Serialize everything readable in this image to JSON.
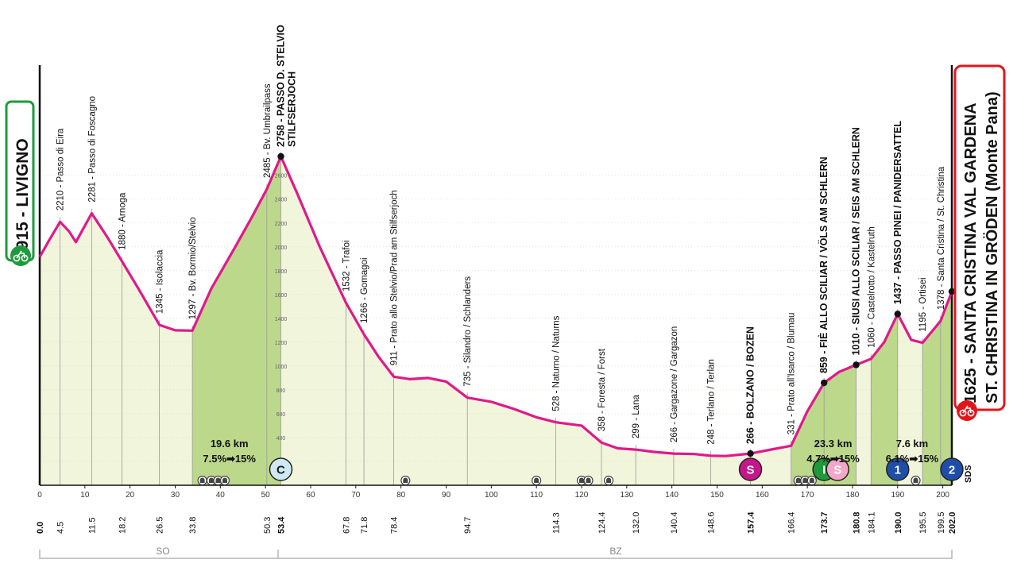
{
  "start": {
    "label": "1915 - LIVIGNO",
    "border_color": "#1e9a3c"
  },
  "finish": {
    "label_line1": "1625 - SANTA CRISTINA VAL GARDENA",
    "label_line2": "ST. CHRISTINA IN GRÖDEN (Monte Pana)",
    "border_color": "#e0161b"
  },
  "region_labels": [
    "SO",
    "BZ"
  ],
  "colors": {
    "profile_line": "#e0198b",
    "climb_fill": "#bcd88a",
    "base_fill": "#f1f5dc",
    "grid": "#b8b8b8"
  },
  "chart_data": {
    "type": "area",
    "x_unit": "km",
    "y_unit": "m",
    "xlim": [
      0,
      202
    ],
    "ylim": [
      0,
      2900
    ],
    "y_ticks": [
      200,
      400,
      600,
      800,
      1000,
      1200,
      1400,
      1600,
      1800,
      2000,
      2200,
      2400,
      2600
    ],
    "x_ticks": [
      10,
      20,
      30,
      40,
      50,
      60,
      70,
      80,
      90,
      100,
      110,
      120,
      130,
      140,
      150,
      160,
      170,
      180,
      190,
      200
    ],
    "profile": [
      [
        0,
        1915
      ],
      [
        2,
        2050
      ],
      [
        4.5,
        2210
      ],
      [
        6.5,
        2130
      ],
      [
        8,
        2040
      ],
      [
        11.5,
        2281
      ],
      [
        15,
        2080
      ],
      [
        18.2,
        1880
      ],
      [
        22,
        1640
      ],
      [
        26.5,
        1345
      ],
      [
        30,
        1300
      ],
      [
        33.8,
        1297
      ],
      [
        38,
        1650
      ],
      [
        43,
        1980
      ],
      [
        47,
        2250
      ],
      [
        50.3,
        2485
      ],
      [
        53.4,
        2758
      ],
      [
        57,
        2450
      ],
      [
        62,
        2000
      ],
      [
        67.8,
        1532
      ],
      [
        71.8,
        1266
      ],
      [
        75,
        1080
      ],
      [
        78.4,
        911
      ],
      [
        82,
        890
      ],
      [
        86,
        900
      ],
      [
        90,
        870
      ],
      [
        94.7,
        735
      ],
      [
        100,
        700
      ],
      [
        105,
        640
      ],
      [
        110,
        570
      ],
      [
        114.3,
        528
      ],
      [
        120,
        500
      ],
      [
        124.4,
        358
      ],
      [
        128,
        310
      ],
      [
        132,
        299
      ],
      [
        136,
        280
      ],
      [
        140.4,
        266
      ],
      [
        145,
        262
      ],
      [
        148.6,
        248
      ],
      [
        152,
        245
      ],
      [
        157.4,
        266
      ],
      [
        162,
        300
      ],
      [
        166.4,
        331
      ],
      [
        170,
        620
      ],
      [
        173.7,
        859
      ],
      [
        177,
        950
      ],
      [
        180.8,
        1010
      ],
      [
        184.1,
        1060
      ],
      [
        187,
        1200
      ],
      [
        190,
        1437
      ],
      [
        193,
        1220
      ],
      [
        195.5,
        1195
      ],
      [
        199.5,
        1378
      ],
      [
        202,
        1625
      ]
    ],
    "climb_segments": [
      [
        33.8,
        53.4
      ],
      [
        166.4,
        180.8
      ],
      [
        184.1,
        190
      ],
      [
        195.5,
        202
      ]
    ],
    "points": [
      {
        "km": 4.5,
        "alt": 2210,
        "label": "2210 - Passo di Eira",
        "bold": false
      },
      {
        "km": 11.5,
        "alt": 2281,
        "label": "2281 - Passo di Foscagno",
        "bold": false
      },
      {
        "km": 18.2,
        "alt": 1880,
        "label": "1880 - Arnoga",
        "bold": false
      },
      {
        "km": 26.5,
        "alt": 1345,
        "label": "1345 - Isolaccia",
        "bold": false
      },
      {
        "km": 33.8,
        "alt": 1297,
        "label": "1297 - Bv. Bormio/Stelvio",
        "bold": false
      },
      {
        "km": 50.3,
        "alt": 2485,
        "label": "2485 - Bv. Umbrailpass",
        "bold": false
      },
      {
        "km": 53.4,
        "alt": 2758,
        "label": "2758 - PASSO D. STELVIO",
        "label2": "STILFSERJOCH",
        "bold": true,
        "dot": true
      },
      {
        "km": 67.8,
        "alt": 1532,
        "label": "1532 - Trafoi",
        "bold": false
      },
      {
        "km": 71.8,
        "alt": 1266,
        "label": "1266 - Gomagoi",
        "bold": false
      },
      {
        "km": 78.4,
        "alt": 911,
        "label": "911 - Prato allo Stelvio/Prad am Stilfserjoch",
        "bold": false
      },
      {
        "km": 94.7,
        "alt": 735,
        "label": "735 - Silandro / Schlanders",
        "bold": false
      },
      {
        "km": 114.3,
        "alt": 528,
        "label": "528 - Naturno / Naturns",
        "bold": false
      },
      {
        "km": 124.4,
        "alt": 358,
        "label": "358 - Foresta / Forst",
        "bold": false
      },
      {
        "km": 132.0,
        "alt": 299,
        "label": "299 - Lana",
        "bold": false
      },
      {
        "km": 140.4,
        "alt": 266,
        "label": "266 - Gargazone / Gargazon",
        "bold": false
      },
      {
        "km": 148.6,
        "alt": 248,
        "label": "248 - Terlano / Terlan",
        "bold": false
      },
      {
        "km": 157.4,
        "alt": 266,
        "label": "266 - BOLZANO / BOZEN",
        "bold": true,
        "dot": true
      },
      {
        "km": 166.4,
        "alt": 331,
        "label": "331 - Prato all'Isarco / Blumau",
        "bold": false
      },
      {
        "km": 173.7,
        "alt": 859,
        "label": "859 - FIÈ ALLO SCILIAR / VÖLS AM SCHLERN",
        "bold": true,
        "dot": true
      },
      {
        "km": 180.8,
        "alt": 1010,
        "label": "1010 - SIUSI ALLO SCILIAR / SEIS AM SCHLERN",
        "bold": true,
        "dot": true
      },
      {
        "km": 184.1,
        "alt": 1060,
        "label": "1060 - Castelrotto / Kastelruth",
        "bold": false
      },
      {
        "km": 190.0,
        "alt": 1437,
        "label": "1437 - PASSO PINEI / PANIDERSATTEL",
        "bold": true,
        "dot": true
      },
      {
        "km": 195.5,
        "alt": 1195,
        "label": "1195 - Ortisei",
        "bold": false
      },
      {
        "km": 199.5,
        "alt": 1378,
        "label": "1378 - Santa Cristina / St. Christina",
        "bold": false
      }
    ],
    "km_labels": [
      {
        "km": 0,
        "text": "0.0",
        "bold": true
      },
      {
        "km": 4.5,
        "text": "4.5",
        "bold": false
      },
      {
        "km": 11.5,
        "text": "11.5",
        "bold": false
      },
      {
        "km": 18.2,
        "text": "18.2",
        "bold": false
      },
      {
        "km": 26.5,
        "text": "26.5",
        "bold": false
      },
      {
        "km": 33.8,
        "text": "33.8",
        "bold": false
      },
      {
        "km": 50.3,
        "text": "50.3",
        "bold": false
      },
      {
        "km": 53.4,
        "text": "53.4",
        "bold": true
      },
      {
        "km": 67.8,
        "text": "67.8",
        "bold": false
      },
      {
        "km": 71.8,
        "text": "71.8",
        "bold": false
      },
      {
        "km": 78.4,
        "text": "78.4",
        "bold": false
      },
      {
        "km": 94.7,
        "text": "94.7",
        "bold": false
      },
      {
        "km": 114.3,
        "text": "114.3",
        "bold": false
      },
      {
        "km": 124.4,
        "text": "124.4",
        "bold": false
      },
      {
        "km": 132.0,
        "text": "132.0",
        "bold": false
      },
      {
        "km": 140.4,
        "text": "140.4",
        "bold": false
      },
      {
        "km": 148.6,
        "text": "148.6",
        "bold": false
      },
      {
        "km": 157.4,
        "text": "157.4",
        "bold": true
      },
      {
        "km": 166.4,
        "text": "166.4",
        "bold": false
      },
      {
        "km": 173.7,
        "text": "173.7",
        "bold": true
      },
      {
        "km": 180.8,
        "text": "180.8",
        "bold": true
      },
      {
        "km": 184.1,
        "text": "184.1",
        "bold": false
      },
      {
        "km": 190.0,
        "text": "190.0",
        "bold": true
      },
      {
        "km": 195.5,
        "text": "195.5",
        "bold": false
      },
      {
        "km": 199.5,
        "text": "199.5",
        "bold": false
      },
      {
        "km": 202.0,
        "text": "202.0",
        "bold": true
      }
    ],
    "annotations": [
      {
        "km": 42,
        "line1": "19.6 km",
        "line2": "7.5%➡15%"
      },
      {
        "km": 175.7,
        "line1": "23.3 km",
        "line2": "4.7%➡15%"
      },
      {
        "km": 193.2,
        "line1": "7.6 km",
        "line2": "6.1%➡15%"
      }
    ],
    "markers": [
      {
        "km": 53.4,
        "text": "C",
        "color": "#cfe9f2",
        "text_color": "#1a1a1a"
      },
      {
        "km": 157.4,
        "text": "S",
        "color": "#c5168c",
        "text_color": "#ffffff"
      },
      {
        "km": 173.7,
        "text": "I",
        "color": "#1f9a3a",
        "text_color": "#ffffff"
      },
      {
        "km": 176.7,
        "text": "S",
        "color": "#f3a6c8",
        "text_color": "#ffffff"
      },
      {
        "km": 190.0,
        "text": "1",
        "color": "#1f4ea8",
        "text_color": "#ffffff"
      },
      {
        "km": 202.0,
        "text": "2",
        "color": "#1f4ea8",
        "text_color": "#ffffff"
      }
    ],
    "tunnels_km": [
      36,
      38,
      39.5,
      41,
      81,
      110,
      120,
      121.5,
      126,
      168,
      169.5,
      171,
      194
    ],
    "sds_label": "SDS"
  }
}
